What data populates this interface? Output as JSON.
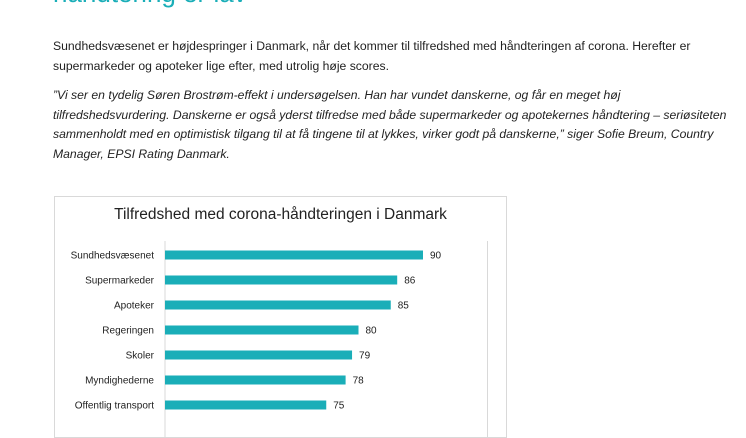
{
  "heading": "håndtering er lav",
  "paragraph1": "Sundhedsvæsenet er højdespringer i Danmark, når det kommer til tilfredshed med håndteringen af corona. Herefter er supermarkeder og apoteker lige efter, med utrolig høje scores.",
  "quote": "”Vi ser en tydelig Søren Brostrøm-effekt i undersøgelsen. Han har vundet danskerne, og får en meget høj tilfredshedsvurdering. Danskerne er også yderst tilfredse med både supermarkeder og apotekernes håndtering – seriøsiteten sammenholdt med en optimistisk tilgang til at få tingene til at lykkes, virker godt på danskerne,” siger Sofie Breum, Country Manager, EPSI Rating Danmark.",
  "chart_data": {
    "type": "bar",
    "orientation": "horizontal",
    "title": "Tilfredshed med corona-håndteringen i Danmark",
    "categories": [
      "Sundhedsvæsenet",
      "Supermarkeder",
      "Apoteker",
      "Regeringen",
      "Skoler",
      "Myndighederne",
      "Offentlig transport"
    ],
    "values": [
      90,
      86,
      85,
      80,
      79,
      78,
      75
    ],
    "xlim": [
      50,
      100
    ],
    "bar_color": "#1aaeb8",
    "grid": true,
    "legend": "none"
  }
}
